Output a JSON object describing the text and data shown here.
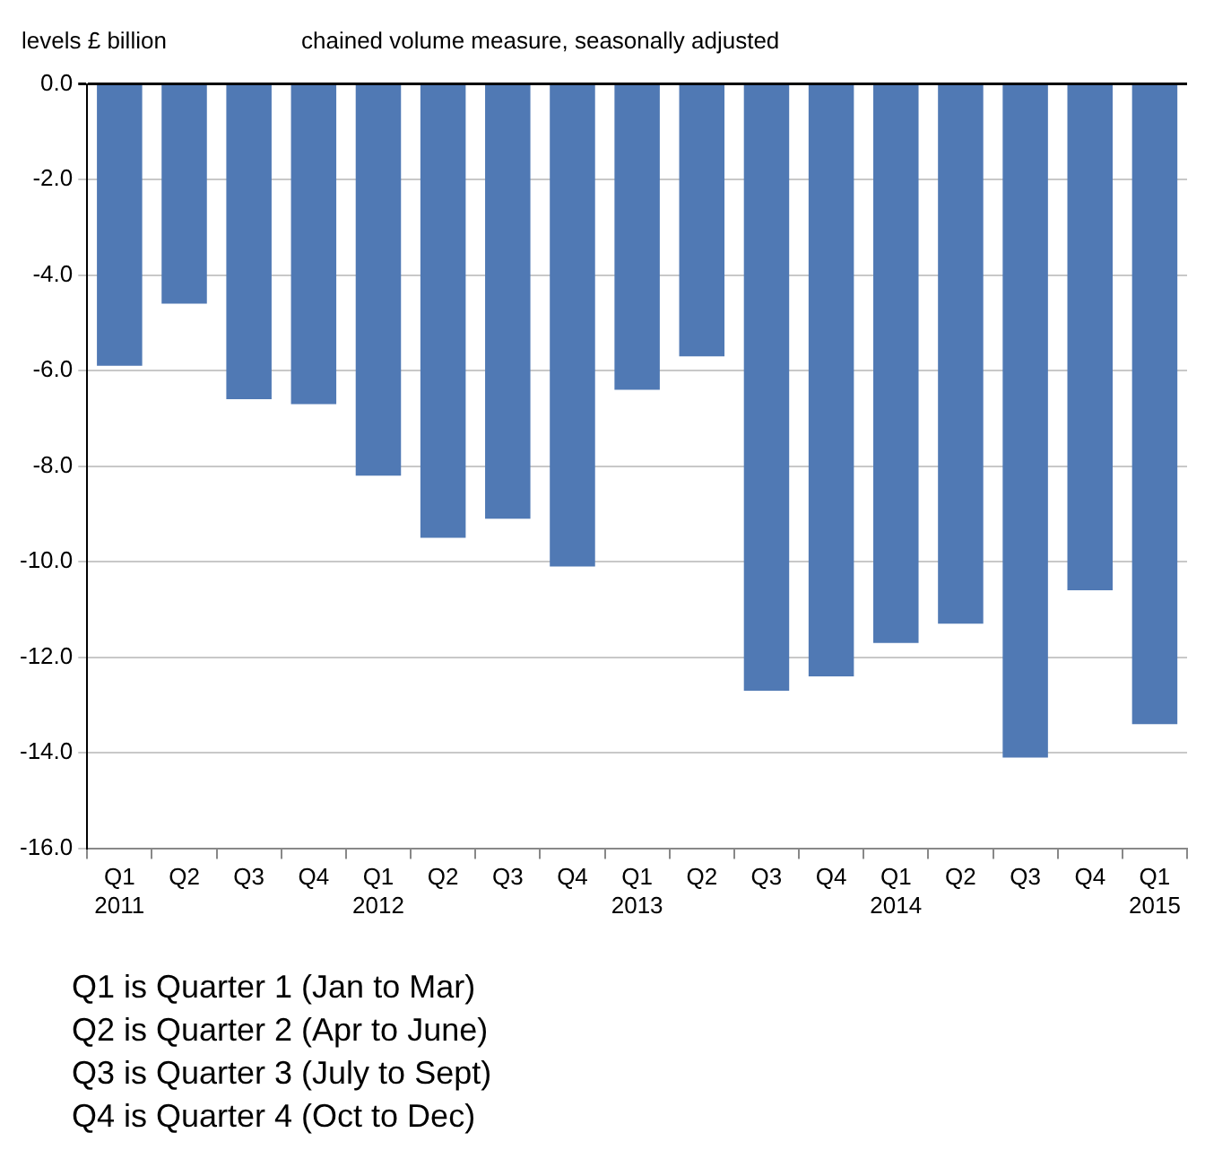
{
  "chart_data": {
    "type": "bar",
    "ylabel": "levels £ billion",
    "subtitle": "chained volume measure, seasonally adjusted",
    "categories": [
      "Q1\n2011",
      "Q2",
      "Q3",
      "Q4",
      "Q1\n2012",
      "Q2",
      "Q3",
      "Q4",
      "Q1\n2013",
      "Q2",
      "Q3",
      "Q4",
      "Q1\n2014",
      "Q2",
      "Q3",
      "Q4",
      "Q1\n2015"
    ],
    "values": [
      -5.9,
      -4.6,
      -6.6,
      -6.7,
      -8.2,
      -9.5,
      -9.1,
      -10.1,
      -6.4,
      -5.7,
      -12.7,
      -12.4,
      -11.7,
      -11.3,
      -14.1,
      -10.6,
      -13.4
    ],
    "color": "#5079b4",
    "ylim": [
      -16,
      0
    ],
    "yticks": [
      {
        "value": 0,
        "label": "0.0"
      },
      {
        "value": -2,
        "label": "-2.0"
      },
      {
        "value": -4,
        "label": "-4.0"
      },
      {
        "value": -6,
        "label": "-6.0"
      },
      {
        "value": -8,
        "label": "-8.0"
      },
      {
        "value": -10,
        "label": "-10.0"
      },
      {
        "value": -12,
        "label": "-12.0"
      },
      {
        "value": -14,
        "label": "-14.0"
      },
      {
        "value": -16,
        "label": "-16.0"
      }
    ],
    "grid": "y",
    "legend": false,
    "annotations": [
      "Q1 is Quarter 1 (Jan to Mar)",
      "Q2 is Quarter 2 (Apr to June)",
      "Q3 is Quarter 3 (July to Sept)",
      "Q4 is Quarter 4 (Oct to Dec)"
    ]
  }
}
